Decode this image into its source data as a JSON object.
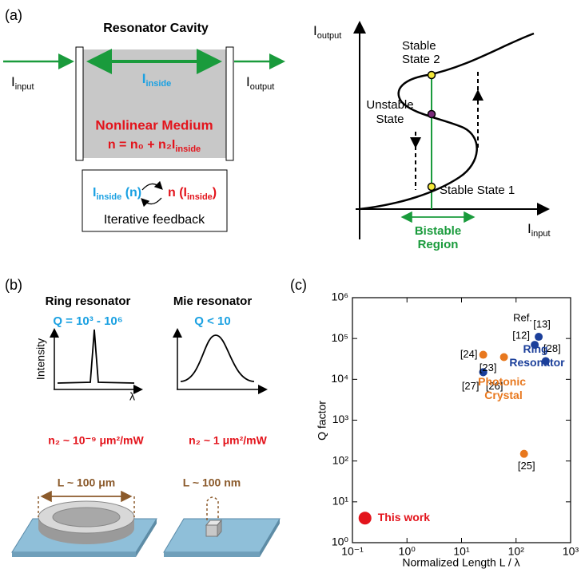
{
  "panel_a": {
    "label": "(a)",
    "cavity_title": "Resonator Cavity",
    "input": {
      "main": "I",
      "subscript": "input"
    },
    "inside": {
      "main": "I",
      "subscript": "inside"
    },
    "output": {
      "main": "I",
      "subscript": "output"
    },
    "medium": "Nonlinear Medium",
    "equation": {
      "main": "n = n₀ + n₂I",
      "subscript": "inside"
    },
    "feedback": {
      "left": {
        "main": "I",
        "subscript": "inside",
        "suffix": " (n)"
      },
      "right": {
        "prefix": "n (I",
        "subscript": "inside",
        "suffix": ")"
      },
      "caption": "Iterative feedback"
    },
    "bistability": {
      "y_axis": {
        "main": "I",
        "subscript": "output"
      },
      "x_axis": {
        "main": "I",
        "subscript": "input"
      },
      "stable_2": [
        "Stable",
        "State 2"
      ],
      "unstable": [
        "Unstable",
        "State"
      ],
      "stable_1": "Stable State 1",
      "region": [
        "Bistable",
        "Region"
      ]
    }
  },
  "panel_b": {
    "label": "(b)",
    "ring": {
      "title": "Ring resonator",
      "q": "Q = 10³ - 10⁶",
      "n2": "n₂ ~ 10⁻⁹ μm²/mW",
      "size": "L ~ 100 μm"
    },
    "mie": {
      "title": "Mie resonator",
      "q": "Q < 10",
      "n2": "n₂ ~ 1 μm²/mW",
      "size": "L ~ 100 nm"
    },
    "y_axis": "Intensity",
    "x_axis": "λ"
  },
  "panel_c": {
    "label": "(c)"
  },
  "chart_data": {
    "type": "scatter",
    "x_label": "Normalized Length  L / λ",
    "y_label": "Q factor",
    "xscale": "log",
    "yscale": "log",
    "xlim": [
      0.1,
      1000
    ],
    "ylim": [
      1,
      1000000
    ],
    "xticks": [
      {
        "value": 0.1,
        "label": "10⁻¹"
      },
      {
        "value": 1,
        "label": "10⁰"
      },
      {
        "value": 10,
        "label": "10¹"
      },
      {
        "value": 100,
        "label": "10²"
      },
      {
        "value": 1000,
        "label": "10³"
      }
    ],
    "yticks": [
      {
        "value": 1,
        "label": "10⁰"
      },
      {
        "value": 10,
        "label": "10¹"
      },
      {
        "value": 100,
        "label": "10²"
      },
      {
        "value": 1000,
        "label": "10³"
      },
      {
        "value": 10000,
        "label": "10⁴"
      },
      {
        "value": 100000,
        "label": "10⁵"
      },
      {
        "value": 1000000,
        "label": "10⁶"
      }
    ],
    "annotation": "Ref.",
    "series": [
      {
        "name": "Ring Resonator",
        "color": "#1b3f9a",
        "x": [
          25,
          25,
          220,
          260,
          350
        ],
        "values": [
          15000,
          15000,
          70000,
          110000,
          28000
        ],
        "point_labels": [
          "[27]",
          "[26]",
          "[12]",
          "[13]",
          "[28]"
        ]
      },
      {
        "name": "Photonic Crystal",
        "color": "#e8781e",
        "x": [
          25,
          60,
          140
        ],
        "values": [
          40000,
          35000,
          150
        ],
        "point_labels": [
          "[24]",
          "[23]",
          "[25]"
        ]
      },
      {
        "name": "This work",
        "color": "#e3141c",
        "x": [
          0.17
        ],
        "values": [
          4
        ]
      }
    ]
  }
}
